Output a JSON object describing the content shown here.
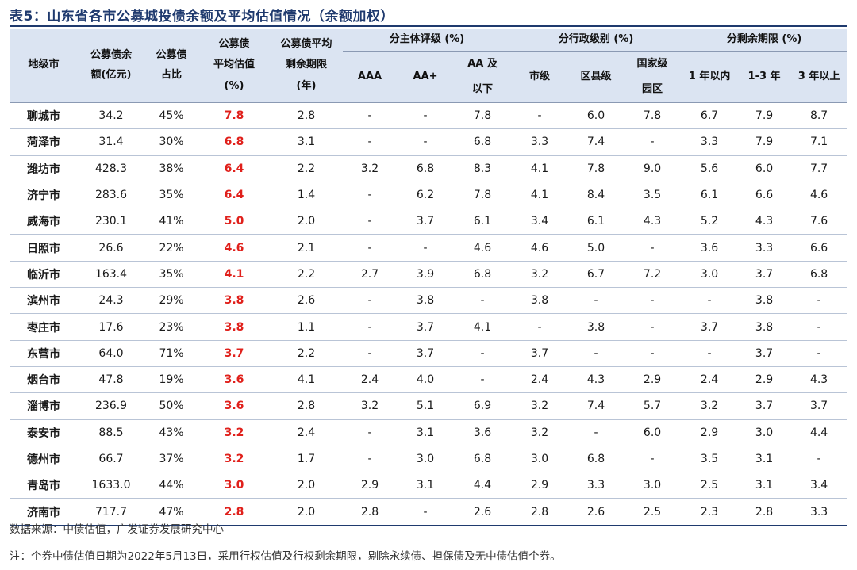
{
  "title": "表5：山东省各市公募城投债余额及平均估值情况（余额加权）",
  "headers": {
    "city": "地级市",
    "balance": [
      "公募债余",
      "额(亿元)"
    ],
    "share": [
      "公募债",
      "占比"
    ],
    "valuation": [
      "公募债",
      "平均估值",
      "(%)"
    ],
    "maturity": [
      "公募债平均",
      "剩余期限",
      "(年)"
    ],
    "group_rating": "分主体评级 (%)",
    "group_admin": "分行政级别 (%)",
    "group_term": "分剩余期限 (%)",
    "aaa": "AAA",
    "aa_plus": "AA+",
    "aa_below": [
      "AA 及",
      "以下"
    ],
    "city_level": "市级",
    "county_level": "区县级",
    "national_park": [
      "国家级",
      "园区"
    ],
    "within_1y": "1 年以内",
    "y1_3": "1-3 年",
    "over_3y": "3 年以上"
  },
  "rows": [
    [
      "聊城市",
      "34.2",
      "45%",
      "7.8",
      "2.8",
      "-",
      "-",
      "7.8",
      "-",
      "6.0",
      "7.8",
      "6.7",
      "7.9",
      "8.7"
    ],
    [
      "菏泽市",
      "31.4",
      "30%",
      "6.8",
      "3.1",
      "-",
      "-",
      "6.8",
      "3.3",
      "7.4",
      "-",
      "3.3",
      "7.9",
      "7.1"
    ],
    [
      "潍坊市",
      "428.3",
      "38%",
      "6.4",
      "2.2",
      "3.2",
      "6.8",
      "8.3",
      "4.1",
      "7.8",
      "9.0",
      "5.6",
      "6.0",
      "7.7"
    ],
    [
      "济宁市",
      "283.6",
      "35%",
      "6.4",
      "1.4",
      "-",
      "6.2",
      "7.8",
      "4.1",
      "8.4",
      "3.5",
      "6.1",
      "6.6",
      "4.6"
    ],
    [
      "威海市",
      "230.1",
      "41%",
      "5.0",
      "2.0",
      "-",
      "3.7",
      "6.1",
      "3.4",
      "6.1",
      "4.3",
      "5.2",
      "4.3",
      "7.6"
    ],
    [
      "日照市",
      "26.6",
      "22%",
      "4.6",
      "2.1",
      "-",
      "-",
      "4.6",
      "4.6",
      "5.0",
      "-",
      "3.6",
      "3.3",
      "6.6"
    ],
    [
      "临沂市",
      "163.4",
      "35%",
      "4.1",
      "2.2",
      "2.7",
      "3.9",
      "6.8",
      "3.2",
      "6.7",
      "7.2",
      "3.0",
      "3.7",
      "6.8"
    ],
    [
      "滨州市",
      "24.3",
      "29%",
      "3.8",
      "2.6",
      "-",
      "3.8",
      "-",
      "3.8",
      "-",
      "-",
      "-",
      "3.8",
      "-"
    ],
    [
      "枣庄市",
      "17.6",
      "23%",
      "3.8",
      "1.1",
      "-",
      "3.7",
      "4.1",
      "-",
      "3.8",
      "-",
      "3.7",
      "3.8",
      "-"
    ],
    [
      "东营市",
      "64.0",
      "71%",
      "3.7",
      "2.2",
      "-",
      "3.7",
      "-",
      "3.7",
      "-",
      "-",
      "-",
      "3.7",
      "-"
    ],
    [
      "烟台市",
      "47.8",
      "19%",
      "3.6",
      "4.1",
      "2.4",
      "4.0",
      "-",
      "2.4",
      "4.3",
      "2.9",
      "2.4",
      "2.9",
      "4.3"
    ],
    [
      "淄博市",
      "236.9",
      "50%",
      "3.6",
      "2.8",
      "3.2",
      "5.1",
      "6.9",
      "3.2",
      "7.4",
      "5.7",
      "3.2",
      "3.7",
      "3.7"
    ],
    [
      "泰安市",
      "88.5",
      "43%",
      "3.2",
      "2.4",
      "-",
      "3.1",
      "3.6",
      "3.2",
      "-",
      "6.0",
      "2.9",
      "3.0",
      "4.4"
    ],
    [
      "德州市",
      "66.7",
      "37%",
      "3.2",
      "1.7",
      "-",
      "3.0",
      "6.8",
      "3.0",
      "6.8",
      "-",
      "3.5",
      "3.1",
      "-"
    ],
    [
      "青岛市",
      "1633.0",
      "44%",
      "3.0",
      "2.0",
      "2.9",
      "3.1",
      "4.4",
      "2.9",
      "3.3",
      "3.0",
      "2.5",
      "3.1",
      "3.4"
    ],
    [
      "济南市",
      "717.7",
      "47%",
      "2.8",
      "2.0",
      "2.8",
      "-",
      "2.6",
      "2.8",
      "2.6",
      "2.5",
      "2.3",
      "2.8",
      "3.3"
    ]
  ],
  "source": "数据来源：中债估值，广发证券发展研究中心",
  "note": "注：个券中债估值日期为2022年5月13日，采用行权估值及行权剩余期限，剔除永续债、担保债及无中债估值个券。",
  "colors": {
    "title": "#1f3a6e",
    "header_bg": "#dbe4f2",
    "highlight": "#e0201b"
  }
}
